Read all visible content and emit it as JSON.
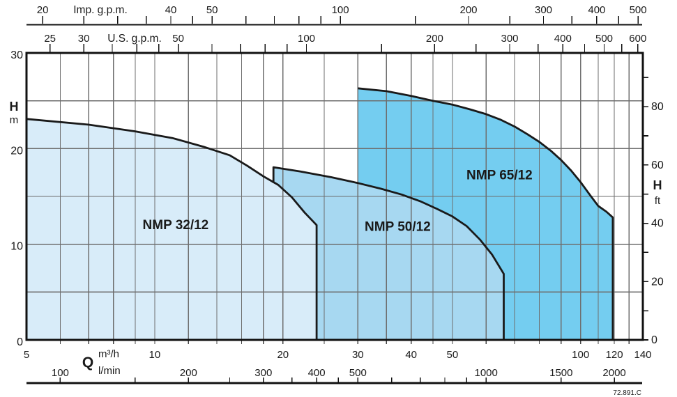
{
  "chart_data": {
    "type": "area",
    "description": "Pump range selection chart, flow Q (log scale) vs head H, three overlapping pump coverage areas",
    "q_range": [
      5,
      140
    ],
    "h_range": [
      0,
      30
    ],
    "grid": {
      "vertical_m3h": [
        6,
        7,
        8,
        9,
        10,
        12,
        14,
        16,
        18,
        20,
        25,
        30,
        35,
        40,
        45,
        50,
        60,
        70,
        80,
        90,
        100,
        110,
        120,
        130
      ],
      "horizontal_m": [
        5,
        10,
        15,
        20,
        25
      ]
    },
    "top_scales": [
      {
        "title": "Imp. g.p.m.",
        "m3h_per_unit": 0.27276,
        "labeled": [
          20,
          40,
          50,
          100,
          200,
          300,
          400,
          500
        ],
        "minor": [
          25,
          30,
          35,
          45,
          60,
          70,
          80,
          90,
          150,
          250,
          350,
          450
        ]
      },
      {
        "title": "U.S. g.p.m.",
        "m3h_per_unit": 0.22712,
        "labeled": [
          25,
          30,
          50,
          100,
          200,
          300,
          400,
          500,
          600
        ],
        "minor": [
          35,
          40,
          45,
          60,
          70,
          80,
          90,
          150,
          250,
          350,
          450,
          550
        ]
      }
    ],
    "bottom_scales": [
      {
        "title": "m³/h",
        "m3h_per_unit": 1,
        "labeled": [
          5,
          10,
          20,
          30,
          40,
          50,
          100,
          120,
          140
        ],
        "minor": []
      },
      {
        "title": "l/min",
        "m3h_per_unit": 0.06,
        "labeled": [
          100,
          200,
          300,
          400,
          500,
          1000,
          1500,
          2000
        ],
        "minor": [
          150,
          250,
          350,
          450,
          600,
          700,
          800,
          900
        ]
      }
    ],
    "x_quantity_label": "Q",
    "y_axis_left": {
      "label": "H",
      "unit": "m",
      "labeled": [
        0,
        10,
        20,
        30
      ]
    },
    "y_axis_right": {
      "label": "H",
      "unit": "ft",
      "labeled": [
        0,
        20,
        40,
        60,
        80
      ],
      "minor": [
        10,
        30,
        50,
        70,
        90
      ],
      "m_per_unit": 0.3048
    },
    "series": [
      {
        "name": "NMP 32/12",
        "fill": "#d8ecf9",
        "label_at": [
          11.2,
          12.1
        ],
        "curve": [
          [
            5,
            23.1
          ],
          [
            7,
            22.5
          ],
          [
            9,
            21.8
          ],
          [
            11,
            21.1
          ],
          [
            13,
            20.2
          ],
          [
            15,
            19.3
          ],
          [
            16.5,
            18.2
          ],
          [
            18,
            17.1
          ],
          [
            19.5,
            16.2
          ],
          [
            21,
            14.9
          ],
          [
            22.5,
            13.3
          ],
          [
            24,
            12.0
          ]
        ]
      },
      {
        "name": "NMP 50/12",
        "fill": "#a7d8f1",
        "label_at": [
          37.2,
          11.9
        ],
        "step_from": 16.4,
        "curve": [
          [
            19,
            18.05
          ],
          [
            22,
            17.6
          ],
          [
            26,
            17.0
          ],
          [
            30,
            16.4
          ],
          [
            34,
            15.8
          ],
          [
            38,
            15.2
          ],
          [
            42,
            14.5
          ],
          [
            46,
            13.7
          ],
          [
            50,
            12.9
          ],
          [
            54,
            11.9
          ],
          [
            58,
            10.5
          ],
          [
            62,
            8.9
          ],
          [
            66,
            6.9
          ]
        ]
      },
      {
        "name": "NMP 65/12",
        "fill": "#74cdf0",
        "label_at": [
          64.5,
          17.3
        ],
        "curve": [
          [
            30,
            26.3
          ],
          [
            35,
            26.0
          ],
          [
            40,
            25.5
          ],
          [
            45,
            25.0
          ],
          [
            50,
            24.6
          ],
          [
            55,
            24.1
          ],
          [
            60,
            23.6
          ],
          [
            65,
            23.0
          ],
          [
            70,
            22.3
          ],
          [
            75,
            21.5
          ],
          [
            80,
            20.7
          ],
          [
            85,
            19.8
          ],
          [
            90,
            18.8
          ],
          [
            95,
            17.7
          ],
          [
            100,
            16.5
          ],
          [
            105,
            15.2
          ],
          [
            110,
            14.0
          ],
          [
            115,
            13.4
          ],
          [
            119,
            12.8
          ]
        ]
      }
    ],
    "stamp": "72.891.C",
    "colors": {
      "background": "#ffffff",
      "border": "#111111",
      "grid": "#6e6e6e",
      "curve": "#1a1a1a",
      "text": "#1a1a1a",
      "stamp": "#555555"
    }
  }
}
